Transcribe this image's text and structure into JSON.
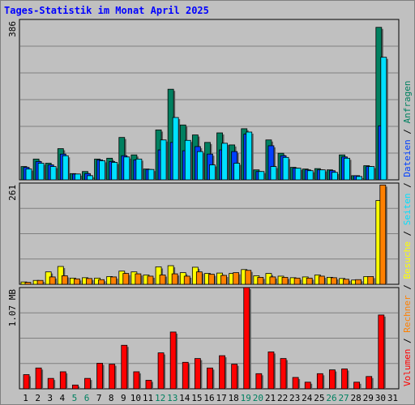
{
  "title": "Tages-Statistik im Monat April 2025",
  "colors": {
    "background": "#c0c0c0",
    "grid": "#808080",
    "title": "#0000ff",
    "anfragen": "#008060",
    "dateien": "#0040ff",
    "seiten": "#00e0ff",
    "besuche": "#ffff00",
    "rechner": "#ff8000",
    "volumen": "#ff0000",
    "weekend_label": "#008060"
  },
  "chart_data": [
    {
      "type": "bar",
      "title": "",
      "ymax_label": "386",
      "ylim": [
        0,
        386
      ],
      "grid": true,
      "days": [
        "1",
        "2",
        "3",
        "4",
        "5",
        "6",
        "7",
        "8",
        "9",
        "10",
        "11",
        "12",
        "13",
        "14",
        "15",
        "16",
        "17",
        "18",
        "19",
        "20",
        "21",
        "22",
        "23",
        "24",
        "25",
        "26",
        "27",
        "28",
        "29",
        "30",
        "31"
      ],
      "series": [
        {
          "name": "Anfragen",
          "values": [
            32,
            50,
            40,
            75,
            15,
            20,
            50,
            52,
            102,
            60,
            26,
            120,
            218,
            132,
            108,
            90,
            113,
            84,
            123,
            24,
            96,
            64,
            30,
            26,
            27,
            24,
            60,
            10,
            34,
            367,
            0
          ]
        },
        {
          "name": "Dateien",
          "values": [
            30,
            44,
            36,
            62,
            14,
            15,
            48,
            44,
            58,
            48,
            25,
            72,
            90,
            70,
            80,
            62,
            72,
            68,
            110,
            20,
            82,
            58,
            28,
            24,
            24,
            22,
            55,
            10,
            32,
            130,
            0
          ]
        },
        {
          "name": "Seiten",
          "values": [
            26,
            40,
            32,
            58,
            14,
            10,
            46,
            42,
            55,
            50,
            25,
            96,
            150,
            95,
            68,
            36,
            88,
            40,
            115,
            20,
            32,
            54,
            28,
            22,
            24,
            18,
            52,
            8,
            32,
            295,
            0
          ]
        }
      ]
    },
    {
      "type": "bar",
      "title": "",
      "ymax_label": "261",
      "ylim": [
        0,
        261
      ],
      "grid": true,
      "days": [
        "1",
        "2",
        "3",
        "4",
        "5",
        "6",
        "7",
        "8",
        "9",
        "10",
        "11",
        "12",
        "13",
        "14",
        "15",
        "16",
        "17",
        "18",
        "19",
        "20",
        "21",
        "22",
        "23",
        "24",
        "25",
        "26",
        "27",
        "28",
        "29",
        "30",
        "31"
      ],
      "series": [
        {
          "name": "Besuche",
          "values": [
            6,
            10,
            32,
            46,
            16,
            17,
            16,
            20,
            34,
            32,
            24,
            45,
            48,
            30,
            44,
            28,
            29,
            28,
            38,
            22,
            28,
            21,
            17,
            19,
            24,
            18,
            15,
            11,
            20,
            216,
            0
          ]
        },
        {
          "name": "Rechner",
          "values": [
            5,
            10,
            19,
            22,
            14,
            15,
            12,
            19,
            28,
            27,
            21,
            24,
            27,
            21,
            32,
            26,
            23,
            30,
            36,
            18,
            19,
            18,
            16,
            16,
            21,
            17,
            13,
            12,
            20,
            256,
            0
          ]
        }
      ]
    },
    {
      "type": "bar",
      "title": "",
      "ymax_label": "1.07 MB",
      "ylim": [
        0,
        1.07
      ],
      "grid": true,
      "days": [
        "1",
        "2",
        "3",
        "4",
        "5",
        "6",
        "7",
        "8",
        "9",
        "10",
        "11",
        "12",
        "13",
        "14",
        "15",
        "16",
        "17",
        "18",
        "19",
        "20",
        "21",
        "22",
        "23",
        "24",
        "25",
        "26",
        "27",
        "28",
        "29",
        "30",
        "31"
      ],
      "series": [
        {
          "name": "Volumen",
          "values": [
            0.15,
            0.22,
            0.11,
            0.18,
            0.04,
            0.11,
            0.27,
            0.26,
            0.46,
            0.18,
            0.09,
            0.38,
            0.6,
            0.28,
            0.32,
            0.22,
            0.35,
            0.26,
            1.07,
            0.16,
            0.39,
            0.32,
            0.12,
            0.07,
            0.16,
            0.2,
            0.21,
            0.07,
            0.13,
            0.78,
            0
          ]
        }
      ]
    }
  ],
  "legend": {
    "anfragen": "Anfragen",
    "dateien": "Dateien",
    "seiten": "Seiten",
    "besuche": "Besuche",
    "rechner": "Rechner",
    "volumen": "Volumen",
    "separator": " / "
  }
}
